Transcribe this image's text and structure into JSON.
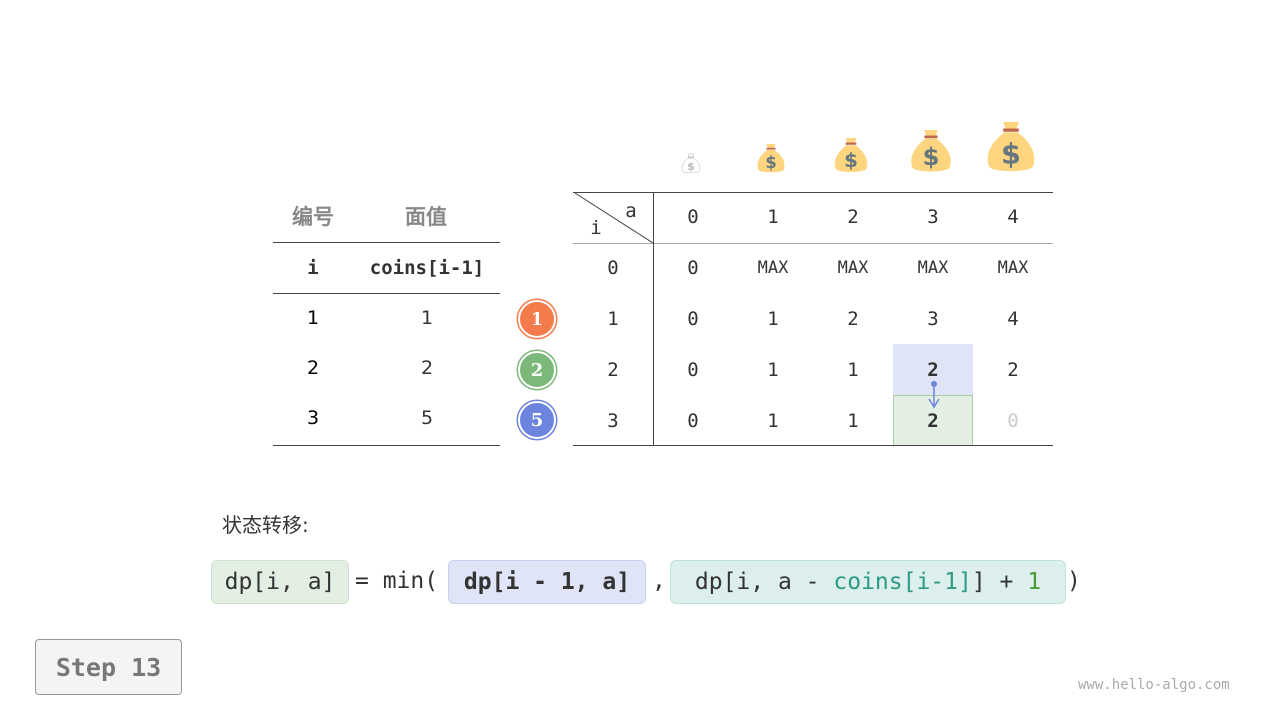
{
  "coin_table": {
    "header": [
      "编号",
      "面值"
    ],
    "subheader": [
      "i",
      "coins[i-1]"
    ],
    "rows": [
      [
        "1",
        "1"
      ],
      [
        "2",
        "2"
      ],
      [
        "3",
        "5"
      ]
    ]
  },
  "coin_badges": [
    {
      "label": "1",
      "color": "#f47c4c"
    },
    {
      "label": "2",
      "color": "#7cb87a"
    },
    {
      "label": "5",
      "color": "#6c84dc"
    }
  ],
  "dp_table": {
    "corner_i": "i",
    "corner_a": "a",
    "columns": [
      "0",
      "1",
      "2",
      "3",
      "4"
    ],
    "row_labels": [
      "0",
      "1",
      "2",
      "3"
    ],
    "rows": [
      [
        "0",
        "MAX",
        "MAX",
        "MAX",
        "MAX"
      ],
      [
        "0",
        "1",
        "2",
        "3",
        "4"
      ],
      [
        "0",
        "1",
        "1",
        "2",
        "2"
      ],
      [
        "0",
        "1",
        "1",
        "2",
        "0"
      ]
    ],
    "highlight_source": {
      "row": 2,
      "col": 3,
      "color": "#dfe5f7"
    },
    "highlight_target": {
      "row": 3,
      "col": 3,
      "color": "#e3efe2"
    },
    "pending_cell": {
      "row": 3,
      "col": 4
    }
  },
  "money_bag_icons": [
    "money-bag-0",
    "money-bag-1",
    "money-bag-2",
    "money-bag-3",
    "money-bag-4"
  ],
  "transition_label": "状态转移:",
  "formula": {
    "lhs": "dp[i, a]",
    "eq": "= min(",
    "term1": "dp[i - 1, a]",
    "comma": ",",
    "term2_a": "dp[i, a - ",
    "term2_b": "coins[i-1]",
    "term2_c": "] + ",
    "term2_d": "1",
    "close": ")"
  },
  "step_label": "Step 13",
  "watermark": "www.hello-algo.com"
}
